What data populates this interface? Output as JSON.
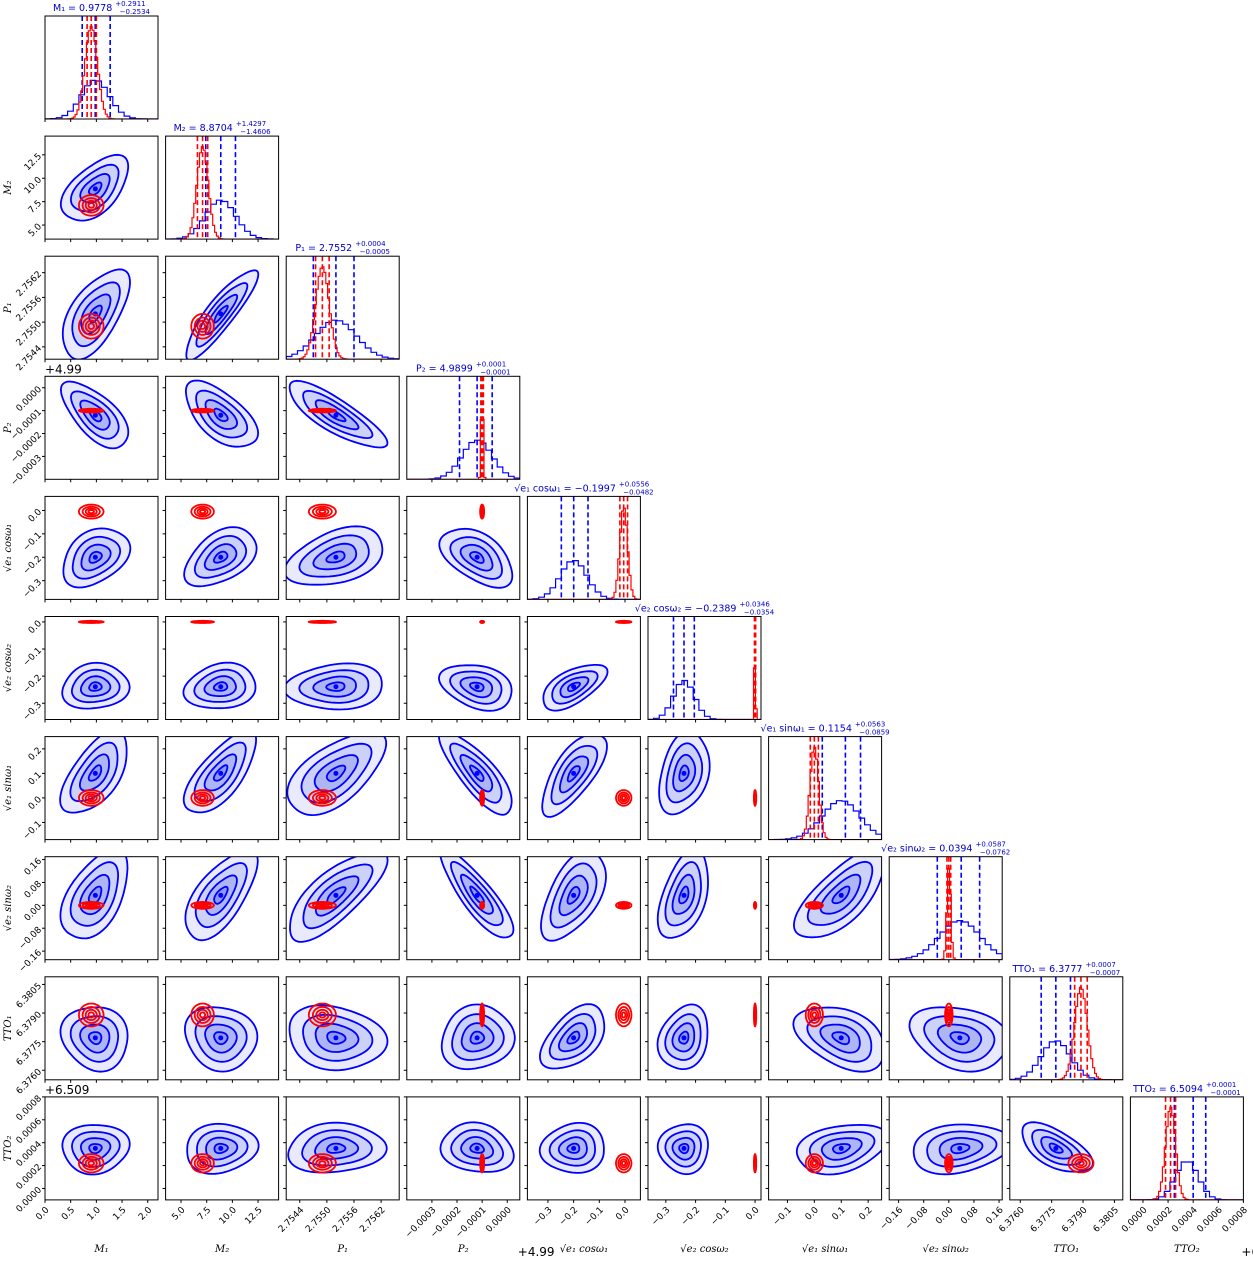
{
  "chart_data": {
    "type": "corner",
    "colors": {
      "primary": "#0000ff",
      "secondary": "#ff0000",
      "fill": "#4a5ee8"
    },
    "params": [
      {
        "id": "M1",
        "label": "M₁",
        "title": "M₁ = 0.9778",
        "err_plus": "+0.2911",
        "err_minus": "−0.2534",
        "range": [
          0.0,
          2.2
        ],
        "ticks": [
          0.0,
          0.5,
          1.0,
          1.5,
          2.0
        ],
        "tick_labels": [
          "0.0",
          "0.5",
          "1.0",
          "1.5",
          "2.0"
        ],
        "offset": "",
        "blue": {
          "mean": 0.98,
          "sd": 0.27,
          "quantiles": [
            0.7244,
            0.9778,
            1.2689
          ]
        },
        "red": {
          "mean": 0.9,
          "sd": 0.12,
          "quantiles": [
            0.82,
            0.9,
            1.0
          ]
        }
      },
      {
        "id": "M2",
        "label": "M₂",
        "title": "M₂ = 8.8704",
        "err_plus": "+1.4297",
        "err_minus": "−1.4606",
        "range": [
          3.5,
          14.5
        ],
        "ticks": [
          5.0,
          7.5,
          10.0,
          12.5
        ],
        "tick_labels": [
          "5.0",
          "7.5",
          "10.0",
          "12.5"
        ],
        "offset": "",
        "blue": {
          "mean": 8.87,
          "sd": 1.45,
          "quantiles": [
            7.4098,
            8.8704,
            10.3001
          ]
        },
        "red": {
          "mean": 7.1,
          "sd": 0.55,
          "quantiles": [
            6.6,
            7.1,
            7.6
          ]
        }
      },
      {
        "id": "P1",
        "label": "P₁",
        "title": "P₁ = 2.7552",
        "err_plus": "+0.0004",
        "err_minus": "−0.0005",
        "range": [
          2.7541,
          2.7566
        ],
        "ticks": [
          2.7544,
          2.755,
          2.7556,
          2.7562
        ],
        "tick_labels": [
          "2.7544",
          "2.7550",
          "2.7556",
          "2.7562"
        ],
        "offset": "",
        "blue": {
          "mean": 2.7552,
          "sd": 0.00045,
          "quantiles": [
            2.7547,
            2.7552,
            2.7556
          ]
        },
        "red": {
          "mean": 2.7549,
          "sd": 0.00015,
          "quantiles": [
            2.75475,
            2.7549,
            2.75505
          ]
        }
      },
      {
        "id": "P2",
        "label": "P₂",
        "title": "P₂ = 4.9899",
        "err_plus": "+0.0001",
        "err_minus": "−0.0001",
        "range": [
          -0.0004,
          5e-05
        ],
        "ticks": [
          -0.0003,
          -0.0002,
          -0.0001,
          0.0
        ],
        "tick_labels": [
          "−0.0003",
          "−0.0002",
          "−0.0001",
          "0.0000"
        ],
        "offset": "+4.99",
        "blue": {
          "mean": -0.00012,
          "sd": 6e-05,
          "quantiles": [
            -0.00019,
            -0.00012,
            -6e-05
          ]
        },
        "red": {
          "mean": -0.0001,
          "sd": 4e-06,
          "quantiles": [
            -0.000105,
            -0.0001,
            -9.5e-05
          ]
        }
      },
      {
        "id": "e1cos",
        "label": "√e₁ cosω₁",
        "title": "√e₁ cosω₁ = −0.1997",
        "err_plus": "+0.0556",
        "err_minus": "−0.0482",
        "range": [
          -0.38,
          0.06
        ],
        "ticks": [
          -0.3,
          -0.2,
          -0.1,
          0.0
        ],
        "tick_labels": [
          "−0.3",
          "−0.2",
          "−0.1",
          "0.0"
        ],
        "offset": "",
        "blue": {
          "mean": -0.2,
          "sd": 0.052,
          "quantiles": [
            -0.2479,
            -0.1997,
            -0.1441
          ]
        },
        "red": {
          "mean": -0.005,
          "sd": 0.015,
          "quantiles": [
            -0.02,
            -0.005,
            0.01
          ]
        }
      },
      {
        "id": "e2cos",
        "label": "√e₂ cosω₂",
        "title": "√e₂ cosω₂ = −0.2389",
        "err_plus": "+0.0346",
        "err_minus": "−0.0354",
        "range": [
          -0.36,
          0.02
        ],
        "ticks": [
          -0.3,
          -0.2,
          -0.1,
          0.0
        ],
        "tick_labels": [
          "−0.3",
          "−0.2",
          "−0.1",
          "0.0"
        ],
        "offset": "",
        "blue": {
          "mean": -0.239,
          "sd": 0.035,
          "quantiles": [
            -0.2743,
            -0.2389,
            -0.2043
          ]
        },
        "red": {
          "mean": 0.0,
          "sd": 0.002,
          "quantiles": [
            -0.002,
            0.0,
            0.002
          ]
        }
      },
      {
        "id": "e1sin",
        "label": "√e₁ sinω₁",
        "title": "√e₁ sinω₁ = 0.1154",
        "err_plus": "+0.0563",
        "err_minus": "−0.0859",
        "range": [
          -0.17,
          0.25
        ],
        "ticks": [
          -0.1,
          0.0,
          0.1,
          0.2
        ],
        "tick_labels": [
          "−0.1",
          "0.0",
          "0.1",
          "0.2"
        ],
        "offset": "",
        "blue": {
          "mean": 0.1,
          "sd": 0.07,
          "quantiles": [
            0.0295,
            0.1154,
            0.1717
          ]
        },
        "red": {
          "mean": 0.0,
          "sd": 0.016,
          "quantiles": [
            -0.015,
            0.0,
            0.015
          ]
        }
      },
      {
        "id": "e2sin",
        "label": "√e₂ sinω₂",
        "title": "√e₂ sinω₂ = 0.0394",
        "err_plus": "+0.0587",
        "err_minus": "−0.0762",
        "range": [
          -0.19,
          0.17
        ],
        "ticks": [
          -0.16,
          -0.08,
          0.0,
          0.08,
          0.16
        ],
        "tick_labels": [
          "−0.16",
          "−0.08",
          "0.00",
          "0.08",
          "0.16"
        ],
        "offset": "",
        "blue": {
          "mean": 0.035,
          "sd": 0.065,
          "quantiles": [
            -0.0368,
            0.0394,
            0.0981
          ]
        },
        "red": {
          "mean": 0.0,
          "sd": 0.006,
          "quantiles": [
            -0.006,
            0.0,
            0.006
          ]
        }
      },
      {
        "id": "TTO1",
        "label": "TTO₁",
        "title": "TTO₁ = 6.3777",
        "err_plus": "+0.0007",
        "err_minus": "−0.0007",
        "range": [
          6.3755,
          6.3809
        ],
        "ticks": [
          6.376,
          6.3775,
          6.379,
          6.3805
        ],
        "tick_labels": [
          "6.3760",
          "6.3775",
          "6.3790",
          "6.3805"
        ],
        "offset": "",
        "blue": {
          "mean": 6.3777,
          "sd": 0.0007,
          "quantiles": [
            6.377,
            6.3777,
            6.3784
          ]
        },
        "red": {
          "mean": 6.3789,
          "sd": 0.0003,
          "quantiles": [
            6.3786,
            6.3789,
            6.3792
          ]
        }
      },
      {
        "id": "TTO2",
        "label": "TTO₂",
        "title": "TTO₂ = 6.5094",
        "err_plus": "+0.0001",
        "err_minus": "−0.0001",
        "range": [
          -0.0001,
          0.0008
        ],
        "ticks": [
          0.0,
          0.0002,
          0.0004,
          0.0006,
          0.0008
        ],
        "tick_labels": [
          "0.0000",
          "0.0002",
          "0.0004",
          "0.0006",
          "0.0008"
        ],
        "offset": "+6.509",
        "blue": {
          "mean": 0.00035,
          "sd": 9e-05,
          "quantiles": [
            0.00025,
            0.0004,
            0.0005
          ]
        },
        "red": {
          "mean": 0.00022,
          "sd": 4e-05,
          "quantiles": [
            0.00018,
            0.00022,
            0.00026
          ]
        }
      }
    ],
    "correlations": [
      [
        1
      ],
      [
        0.55,
        1
      ],
      [
        0.6,
        0.88,
        1
      ],
      [
        -0.65,
        -0.6,
        -0.82,
        1
      ],
      [
        0.35,
        0.45,
        0.4,
        -0.5,
        1
      ],
      [
        0.1,
        0.15,
        0.1,
        -0.3,
        0.6,
        1
      ],
      [
        0.6,
        0.7,
        0.6,
        -0.8,
        0.7,
        0.3,
        1
      ],
      [
        0.5,
        0.65,
        0.75,
        -0.85,
        0.55,
        0.45,
        0.7,
        1
      ],
      [
        -0.1,
        -0.1,
        -0.15,
        0.1,
        0.5,
        0.2,
        -0.4,
        -0.25,
        1
      ],
      [
        0.05,
        0.1,
        0.1,
        -0.15,
        0.05,
        0.0,
        0.3,
        0.2,
        -0.6,
        1
      ]
    ]
  }
}
